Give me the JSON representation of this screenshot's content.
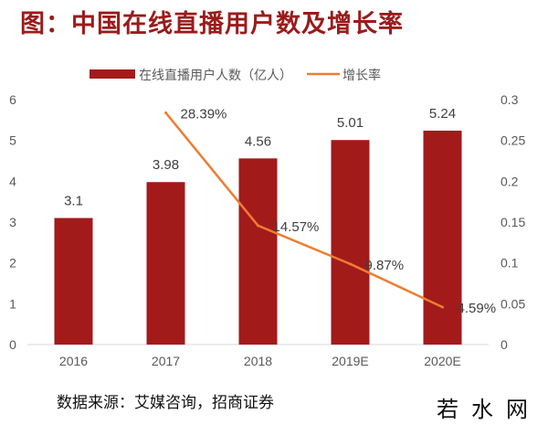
{
  "title": "图：中国在线直播用户数及增长率",
  "source": "数据来源：艾媒咨询，招商证券",
  "watermark": "若水网",
  "chart_data": {
    "type": "bar+line",
    "categories": [
      "2016",
      "2017",
      "2018",
      "2019E",
      "2020E"
    ],
    "series": [
      {
        "name": "在线直播用户人数（亿人）",
        "type": "bar",
        "axis": "left",
        "color": "#a31a1a",
        "values": [
          3.1,
          3.98,
          4.56,
          5.01,
          5.24
        ],
        "labels": [
          "3.1",
          "3.98",
          "4.56",
          "5.01",
          "5.24"
        ]
      },
      {
        "name": "增长率",
        "type": "line",
        "axis": "right",
        "color": "#ed7d31",
        "values": [
          null,
          0.2839,
          0.1457,
          0.0987,
          0.0459
        ],
        "labels": [
          "",
          "28.39%",
          "14.57%",
          "9.87%",
          "4.59%"
        ]
      }
    ],
    "left_axis": {
      "ylim": [
        0,
        6
      ],
      "ticks": [
        "0",
        "1",
        "2",
        "3",
        "4",
        "5",
        "6"
      ]
    },
    "right_axis": {
      "ylim": [
        0,
        0.3
      ],
      "ticks": [
        "0",
        "0.05",
        "0.1",
        "0.15",
        "0.2",
        "0.25",
        "0.3"
      ]
    },
    "legend": "top",
    "grid": false
  }
}
